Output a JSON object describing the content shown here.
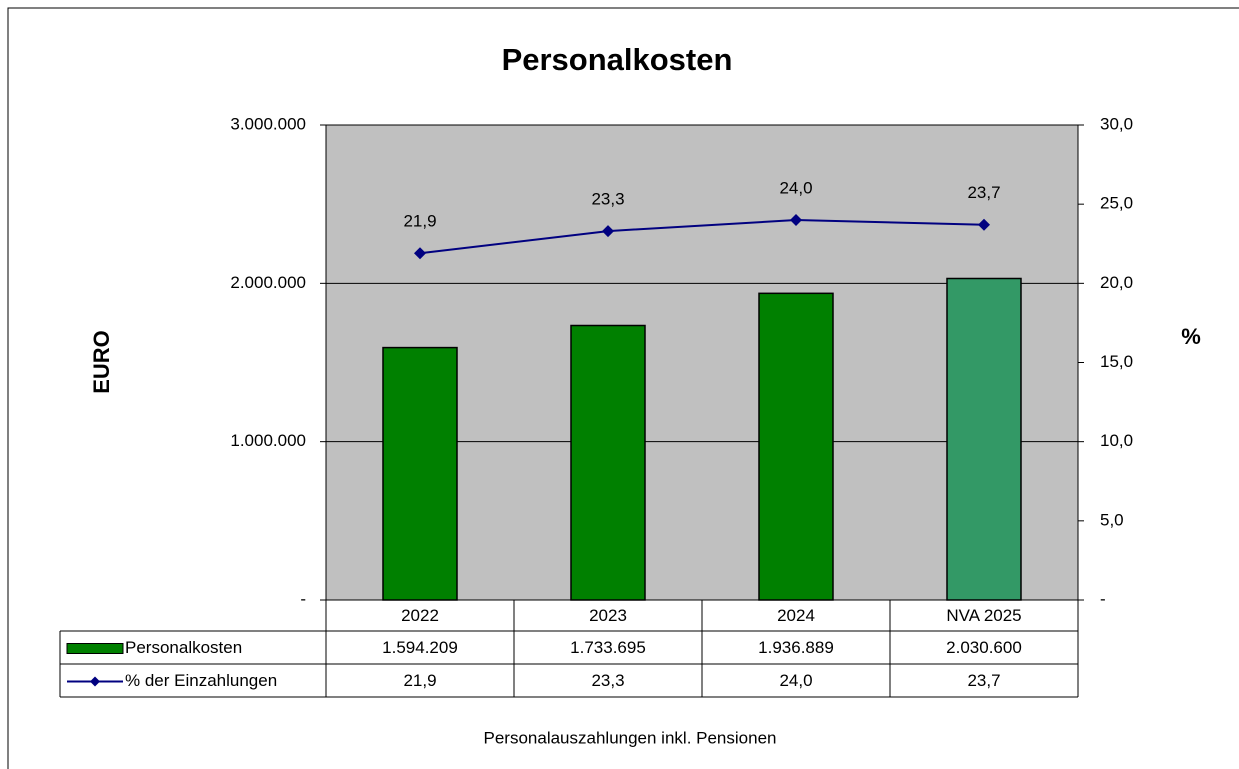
{
  "chart_data": {
    "type": "bar",
    "title": "Personalkosten",
    "ylabel": "EURO",
    "y2label": "%",
    "footnote": "Personalauszahlungen inkl. Pensionen",
    "categories": [
      "2022",
      "2023",
      "2024",
      "NVA 2025"
    ],
    "series": [
      {
        "name": "Personalkosten",
        "type": "bar",
        "color": "#008000",
        "colors": [
          "#008000",
          "#008000",
          "#008000",
          "#339966"
        ],
        "values": [
          1594209,
          1733695,
          1936889,
          2030600
        ],
        "value_labels": [
          "1.594.209",
          "1.733.695",
          "1.936.889",
          "2.030.600"
        ]
      },
      {
        "name": "% der Einzahlungen",
        "type": "line",
        "axis": "y2",
        "color": "#000080",
        "values": [
          21.9,
          23.3,
          24.0,
          23.7
        ],
        "value_labels": [
          "21,9",
          "23,3",
          "24,0",
          "23,7"
        ]
      }
    ],
    "ylim": [
      0,
      3000000
    ],
    "yticks": [
      {
        "value": 0,
        "label": "-"
      },
      {
        "value": 1000000,
        "label": "1.000.000"
      },
      {
        "value": 2000000,
        "label": "2.000.000"
      },
      {
        "value": 3000000,
        "label": "3.000.000"
      }
    ],
    "y2lim": [
      0,
      30
    ],
    "y2ticks": [
      {
        "value": 0,
        "label": "-"
      },
      {
        "value": 5,
        "label": "5,0"
      },
      {
        "value": 10,
        "label": "10,0"
      },
      {
        "value": 15,
        "label": "15,0"
      },
      {
        "value": 20,
        "label": "20,0"
      },
      {
        "value": 25,
        "label": "25,0"
      },
      {
        "value": 30,
        "label": "30,0"
      }
    ],
    "grid": true,
    "plot_background": "#c0c0c0"
  }
}
